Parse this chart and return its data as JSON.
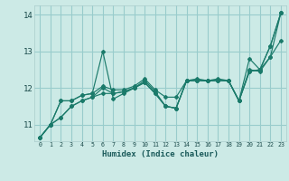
{
  "background_color": "#cceae6",
  "grid_color": "#99cccc",
  "line_color": "#1a7a6a",
  "xlabel": "Humidex (Indice chaleur)",
  "xlim": [
    -0.5,
    23.5
  ],
  "ylim": [
    10.55,
    14.25
  ],
  "yticks": [
    11,
    12,
    13,
    14
  ],
  "xticks": [
    0,
    1,
    2,
    3,
    4,
    5,
    6,
    7,
    8,
    9,
    10,
    11,
    12,
    13,
    14,
    15,
    16,
    17,
    18,
    19,
    20,
    21,
    22,
    23
  ],
  "series": [
    [
      10.65,
      11.0,
      11.65,
      11.65,
      11.8,
      11.85,
      13.0,
      11.7,
      11.85,
      12.0,
      12.2,
      11.9,
      11.5,
      11.45,
      12.2,
      12.25,
      12.2,
      12.2,
      12.2,
      11.65,
      12.8,
      12.5,
      12.85,
      14.05
    ],
    [
      10.65,
      11.0,
      11.65,
      11.65,
      11.8,
      11.85,
      12.05,
      11.95,
      11.95,
      12.05,
      12.25,
      11.95,
      11.75,
      11.75,
      12.2,
      12.2,
      12.2,
      12.25,
      12.2,
      11.65,
      12.5,
      12.45,
      12.85,
      13.3
    ],
    [
      10.65,
      11.0,
      11.2,
      11.5,
      11.65,
      11.75,
      12.0,
      11.85,
      11.9,
      12.0,
      12.15,
      11.85,
      11.5,
      11.45,
      12.2,
      12.2,
      12.2,
      12.2,
      12.2,
      11.65,
      12.45,
      12.5,
      13.15,
      14.05
    ],
    [
      10.65,
      11.0,
      11.2,
      11.5,
      11.65,
      11.75,
      11.85,
      11.85,
      11.9,
      12.0,
      12.15,
      11.85,
      11.5,
      11.45,
      12.2,
      12.2,
      12.2,
      12.2,
      12.2,
      11.65,
      12.45,
      12.5,
      13.15,
      14.05
    ]
  ]
}
